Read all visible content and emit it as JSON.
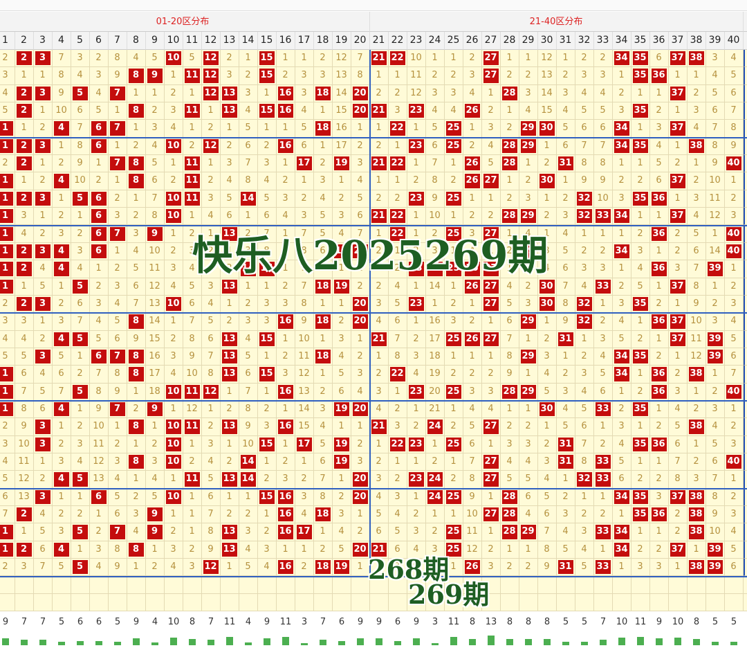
{
  "header": {
    "zones": [
      "01-20区分布",
      "21-40区分布"
    ]
  },
  "columns": [
    1,
    2,
    3,
    4,
    5,
    6,
    7,
    8,
    9,
    10,
    11,
    12,
    13,
    14,
    15,
    16,
    17,
    18,
    19,
    20,
    21,
    22,
    23,
    24,
    25,
    26,
    27,
    28,
    29,
    30,
    31,
    32,
    33,
    34,
    35,
    36,
    37,
    38,
    39,
    40
  ],
  "rows": [
    [
      2,
      2,
      3,
      7,
      3,
      2,
      8,
      4,
      5,
      10,
      5,
      12,
      2,
      1,
      15,
      1,
      1,
      2,
      12,
      7,
      21,
      22,
      10,
      1,
      1,
      2,
      27,
      1,
      1,
      12,
      1,
      2,
      2,
      34,
      35,
      6,
      37,
      38,
      3,
      4
    ],
    [
      3,
      1,
      1,
      8,
      4,
      3,
      9,
      8,
      9,
      1,
      11,
      12,
      3,
      2,
      15,
      2,
      3,
      3,
      13,
      8,
      1,
      1,
      11,
      2,
      2,
      3,
      27,
      2,
      2,
      13,
      2,
      3,
      3,
      1,
      35,
      36,
      1,
      1,
      4,
      5
    ],
    [
      4,
      2,
      3,
      9,
      5,
      4,
      7,
      1,
      1,
      2,
      1,
      12,
      13,
      3,
      1,
      16,
      3,
      18,
      14,
      20,
      2,
      2,
      12,
      3,
      3,
      4,
      1,
      28,
      3,
      14,
      3,
      4,
      4,
      2,
      1,
      1,
      37,
      2,
      5,
      6
    ],
    [
      5,
      2,
      1,
      10,
      6,
      5,
      1,
      8,
      2,
      3,
      11,
      1,
      13,
      4,
      15,
      16,
      4,
      1,
      15,
      20,
      21,
      3,
      23,
      4,
      4,
      26,
      2,
      1,
      4,
      15,
      4,
      5,
      5,
      3,
      35,
      2,
      1,
      3,
      6,
      7
    ],
    [
      1,
      1,
      2,
      4,
      7,
      6,
      7,
      1,
      3,
      4,
      1,
      2,
      1,
      5,
      1,
      1,
      5,
      18,
      16,
      1,
      1,
      22,
      1,
      5,
      25,
      1,
      3,
      2,
      29,
      30,
      5,
      6,
      6,
      34,
      1,
      3,
      37,
      4,
      7,
      8
    ],
    [
      1,
      2,
      3,
      1,
      8,
      6,
      1,
      2,
      4,
      10,
      2,
      12,
      2,
      6,
      2,
      16,
      6,
      1,
      17,
      2,
      2,
      1,
      23,
      6,
      25,
      2,
      4,
      28,
      29,
      1,
      6,
      7,
      7,
      34,
      35,
      4,
      1,
      38,
      8,
      9
    ],
    [
      2,
      2,
      1,
      2,
      9,
      1,
      7,
      8,
      5,
      1,
      11,
      1,
      3,
      7,
      3,
      1,
      17,
      2,
      19,
      3,
      21,
      22,
      1,
      7,
      1,
      26,
      5,
      28,
      1,
      2,
      31,
      8,
      8,
      1,
      1,
      5,
      2,
      1,
      9,
      40
    ],
    [
      1,
      1,
      2,
      4,
      10,
      2,
      1,
      8,
      6,
      2,
      11,
      2,
      4,
      8,
      4,
      2,
      1,
      3,
      1,
      4,
      1,
      1,
      2,
      8,
      2,
      26,
      27,
      1,
      2,
      30,
      1,
      9,
      9,
      2,
      2,
      6,
      37,
      2,
      10,
      1
    ],
    [
      1,
      2,
      3,
      1,
      5,
      6,
      2,
      1,
      7,
      10,
      11,
      3,
      5,
      14,
      5,
      3,
      2,
      4,
      2,
      5,
      2,
      2,
      23,
      9,
      25,
      1,
      1,
      2,
      3,
      1,
      2,
      32,
      10,
      3,
      35,
      36,
      1,
      3,
      11,
      2
    ],
    [
      1,
      3,
      1,
      2,
      1,
      6,
      3,
      2,
      8,
      10,
      1,
      4,
      6,
      1,
      6,
      4,
      3,
      5,
      3,
      6,
      21,
      22,
      1,
      10,
      1,
      2,
      2,
      28,
      29,
      2,
      3,
      32,
      33,
      34,
      1,
      1,
      37,
      4,
      12,
      3
    ],
    [
      1,
      4,
      2,
      3,
      2,
      6,
      7,
      3,
      9,
      1,
      2,
      1,
      13,
      2,
      7,
      1,
      7,
      5,
      4,
      7,
      1,
      22,
      1,
      2,
      25,
      3,
      27,
      1,
      4,
      1,
      4,
      1,
      1,
      1,
      2,
      36,
      2,
      5,
      1,
      40
    ],
    [
      1,
      2,
      3,
      4,
      3,
      6,
      1,
      4,
      10,
      2,
      3,
      2,
      1,
      3,
      8,
      2,
      8,
      6,
      19,
      20,
      2,
      1,
      2,
      3,
      1,
      4,
      1,
      2,
      29,
      3,
      5,
      2,
      2,
      34,
      3,
      1,
      2,
      6,
      14,
      40
    ],
    [
      1,
      2,
      4,
      4,
      4,
      1,
      2,
      5,
      11,
      3,
      4,
      2,
      2,
      14,
      15,
      1,
      9,
      7,
      1,
      1,
      3,
      2,
      23,
      24,
      25,
      26,
      27,
      1,
      2,
      4,
      6,
      3,
      3,
      1,
      4,
      36,
      3,
      7,
      39,
      1
    ],
    [
      1,
      1,
      5,
      1,
      5,
      2,
      3,
      6,
      12,
      4,
      5,
      3,
      13,
      1,
      1,
      2,
      7,
      18,
      19,
      2,
      2,
      4,
      1,
      14,
      1,
      26,
      27,
      4,
      2,
      30,
      7,
      4,
      33,
      2,
      5,
      1,
      37,
      8,
      1,
      2
    ],
    [
      2,
      2,
      3,
      2,
      6,
      3,
      4,
      7,
      13,
      10,
      6,
      4,
      1,
      2,
      3,
      3,
      8,
      1,
      1,
      20,
      3,
      5,
      23,
      1,
      2,
      1,
      27,
      5,
      3,
      30,
      8,
      32,
      1,
      3,
      35,
      2,
      1,
      9,
      2,
      3
    ],
    [
      3,
      3,
      1,
      3,
      7,
      4,
      5,
      8,
      14,
      1,
      7,
      5,
      2,
      3,
      3,
      16,
      9,
      18,
      2,
      20,
      4,
      6,
      1,
      16,
      3,
      2,
      1,
      6,
      29,
      1,
      9,
      32,
      2,
      4,
      1,
      36,
      37,
      10,
      3,
      4
    ],
    [
      4,
      4,
      2,
      4,
      5,
      5,
      6,
      9,
      15,
      2,
      8,
      6,
      13,
      4,
      15,
      1,
      10,
      1,
      3,
      1,
      21,
      7,
      2,
      17,
      25,
      26,
      27,
      7,
      1,
      2,
      31,
      1,
      3,
      5,
      2,
      1,
      37,
      11,
      39,
      5
    ],
    [
      5,
      5,
      3,
      5,
      1,
      6,
      7,
      8,
      16,
      3,
      9,
      7,
      13,
      5,
      1,
      2,
      11,
      18,
      4,
      2,
      1,
      8,
      3,
      18,
      1,
      1,
      1,
      8,
      29,
      3,
      1,
      2,
      4,
      34,
      35,
      2,
      1,
      12,
      39,
      6
    ],
    [
      1,
      6,
      4,
      6,
      2,
      7,
      8,
      8,
      17,
      4,
      10,
      8,
      13,
      6,
      15,
      3,
      12,
      1,
      5,
      3,
      2,
      22,
      4,
      19,
      2,
      2,
      2,
      9,
      1,
      4,
      2,
      3,
      5,
      34,
      1,
      36,
      2,
      38,
      1,
      7
    ],
    [
      1,
      7,
      5,
      7,
      5,
      8,
      9,
      1,
      18,
      10,
      11,
      12,
      1,
      7,
      1,
      16,
      13,
      2,
      6,
      4,
      3,
      1,
      23,
      20,
      25,
      3,
      3,
      28,
      29,
      5,
      3,
      4,
      6,
      1,
      2,
      36,
      3,
      1,
      2,
      40
    ],
    [
      1,
      8,
      6,
      4,
      1,
      9,
      7,
      2,
      9,
      1,
      12,
      1,
      2,
      8,
      2,
      1,
      14,
      3,
      19,
      20,
      4,
      2,
      1,
      21,
      1,
      4,
      4,
      1,
      1,
      30,
      4,
      5,
      33,
      2,
      35,
      1,
      4,
      2,
      3,
      1
    ],
    [
      2,
      9,
      3,
      1,
      2,
      10,
      1,
      8,
      1,
      10,
      11,
      2,
      13,
      9,
      3,
      16,
      15,
      4,
      1,
      1,
      21,
      3,
      2,
      24,
      2,
      5,
      27,
      2,
      2,
      1,
      5,
      6,
      1,
      3,
      1,
      2,
      5,
      38,
      4,
      2
    ],
    [
      3,
      10,
      3,
      2,
      3,
      11,
      2,
      1,
      2,
      10,
      1,
      3,
      1,
      10,
      15,
      1,
      17,
      5,
      19,
      2,
      1,
      22,
      23,
      1,
      25,
      6,
      1,
      3,
      3,
      2,
      31,
      7,
      2,
      4,
      35,
      36,
      6,
      1,
      5,
      3
    ],
    [
      4,
      11,
      1,
      3,
      4,
      12,
      3,
      8,
      3,
      10,
      2,
      4,
      2,
      14,
      1,
      2,
      1,
      6,
      19,
      3,
      2,
      1,
      1,
      2,
      1,
      7,
      27,
      4,
      4,
      3,
      31,
      8,
      33,
      5,
      1,
      1,
      7,
      2,
      6,
      40
    ],
    [
      5,
      12,
      2,
      4,
      5,
      13,
      4,
      1,
      4,
      1,
      11,
      5,
      13,
      14,
      2,
      3,
      2,
      7,
      1,
      20,
      3,
      2,
      23,
      24,
      2,
      8,
      27,
      5,
      5,
      4,
      1,
      32,
      33,
      6,
      2,
      2,
      8,
      3,
      7,
      1
    ],
    [
      6,
      13,
      3,
      1,
      1,
      6,
      5,
      2,
      5,
      10,
      1,
      6,
      1,
      1,
      15,
      16,
      3,
      8,
      2,
      20,
      4,
      3,
      1,
      24,
      25,
      9,
      1,
      28,
      6,
      5,
      2,
      1,
      1,
      34,
      35,
      3,
      37,
      38,
      8,
      2
    ],
    [
      7,
      2,
      4,
      2,
      2,
      1,
      6,
      3,
      9,
      1,
      1,
      7,
      2,
      2,
      1,
      16,
      4,
      18,
      3,
      1,
      5,
      4,
      2,
      1,
      1,
      10,
      27,
      28,
      4,
      6,
      3,
      2,
      2,
      1,
      35,
      36,
      2,
      38,
      9,
      3
    ],
    [
      1,
      1,
      5,
      3,
      5,
      2,
      7,
      4,
      9,
      2,
      1,
      8,
      13,
      3,
      2,
      16,
      17,
      1,
      4,
      2,
      6,
      5,
      3,
      2,
      25,
      11,
      1,
      28,
      29,
      7,
      4,
      3,
      33,
      34,
      1,
      1,
      2,
      38,
      10,
      4
    ],
    [
      1,
      2,
      6,
      4,
      1,
      3,
      8,
      8,
      1,
      3,
      2,
      9,
      13,
      4,
      3,
      1,
      1,
      2,
      5,
      20,
      21,
      6,
      4,
      3,
      25,
      12,
      2,
      1,
      1,
      8,
      5,
      4,
      1,
      34,
      2,
      2,
      37,
      1,
      39,
      5
    ],
    [
      2,
      3,
      7,
      5,
      5,
      4,
      9,
      1,
      2,
      4,
      3,
      12,
      1,
      5,
      4,
      16,
      2,
      18,
      19,
      1,
      1,
      7,
      5,
      4,
      1,
      26,
      3,
      2,
      2,
      9,
      31,
      5,
      33,
      1,
      3,
      3,
      1,
      38,
      39,
      6
    ]
  ],
  "counts": [
    9,
    7,
    7,
    5,
    6,
    6,
    5,
    9,
    4,
    10,
    8,
    7,
    11,
    4,
    9,
    11,
    3,
    7,
    6,
    9,
    9,
    6,
    9,
    3,
    11,
    8,
    13,
    8,
    8,
    8,
    5,
    5,
    7,
    10,
    11,
    9,
    10,
    8,
    5,
    5
  ],
  "overlays": {
    "title": "快乐八2025269期",
    "prev": "268期",
    "next": "269期"
  }
}
